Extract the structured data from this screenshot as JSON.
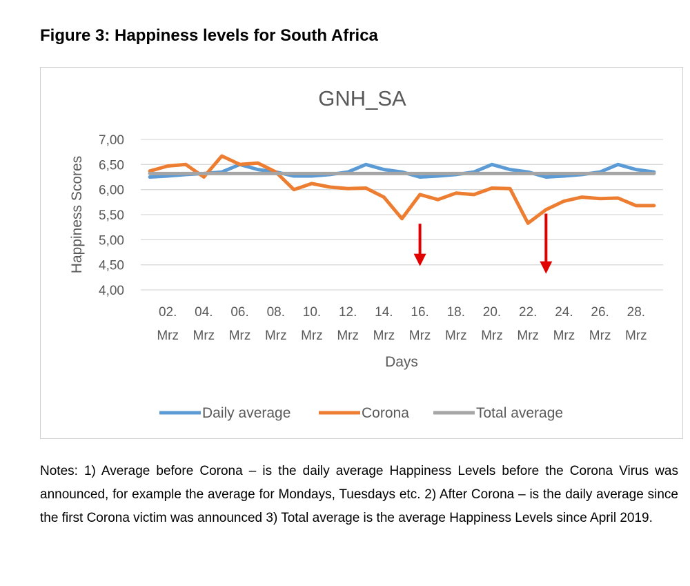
{
  "figure_title": "Figure 3: Happiness levels for South Africa",
  "notes": "Notes: 1) Average before Corona – is the daily average Happiness Levels before the Corona Virus was announced, for example the average for Mondays, Tuesdays etc. 2) After Corona – is the daily average since the first Corona victim was announced 3) Total average is the average Happiness Levels since April 2019.",
  "chart_data": {
    "type": "line",
    "title": "GNH_SA",
    "xlabel": "Days",
    "ylabel": "Happiness Scores",
    "ylim": [
      4.0,
      7.0
    ],
    "ytick_step": 0.5,
    "ytick_labels": [
      "4,00",
      "4,50",
      "5,00",
      "5,50",
      "6,00",
      "6,50",
      "7,00"
    ],
    "x": [
      "01. Mrz",
      "02. Mrz",
      "03. Mrz",
      "04. Mrz",
      "05. Mrz",
      "06. Mrz",
      "07. Mrz",
      "08. Mrz",
      "09. Mrz",
      "10. Mrz",
      "11. Mrz",
      "12. Mrz",
      "13. Mrz",
      "14. Mrz",
      "15. Mrz",
      "16. Mrz",
      "17. Mrz",
      "18. Mrz",
      "19. Mrz",
      "20. Mrz",
      "21. Mrz",
      "22. Mrz",
      "23. Mrz",
      "24. Mrz",
      "25. Mrz",
      "26. Mrz",
      "27. Mrz",
      "28. Mrz",
      "29. Mrz"
    ],
    "xtick_labels": [
      {
        "day": "02.",
        "month": "Mrz"
      },
      {
        "day": "04.",
        "month": "Mrz"
      },
      {
        "day": "06.",
        "month": "Mrz"
      },
      {
        "day": "08.",
        "month": "Mrz"
      },
      {
        "day": "10.",
        "month": "Mrz"
      },
      {
        "day": "12.",
        "month": "Mrz"
      },
      {
        "day": "14.",
        "month": "Mrz"
      },
      {
        "day": "16.",
        "month": "Mrz"
      },
      {
        "day": "18.",
        "month": "Mrz"
      },
      {
        "day": "20.",
        "month": "Mrz"
      },
      {
        "day": "22.",
        "month": "Mrz"
      },
      {
        "day": "24.",
        "month": "Mrz"
      },
      {
        "day": "26.",
        "month": "Mrz"
      },
      {
        "day": "28.",
        "month": "Mrz"
      }
    ],
    "series": [
      {
        "name": "Daily average",
        "color": "#5B9BD5",
        "values": [
          6.25,
          6.27,
          6.3,
          6.32,
          6.35,
          6.5,
          6.4,
          6.35,
          6.27,
          6.27,
          6.3,
          6.35,
          6.5,
          6.4,
          6.35,
          6.25,
          6.27,
          6.3,
          6.35,
          6.5,
          6.4,
          6.35,
          6.25,
          6.27,
          6.3,
          6.35,
          6.5,
          6.4,
          6.35
        ]
      },
      {
        "name": "Corona",
        "color": "#ED7D31",
        "values": [
          6.37,
          6.47,
          6.5,
          6.25,
          6.67,
          6.5,
          6.53,
          6.35,
          6.0,
          6.12,
          6.05,
          6.02,
          6.03,
          5.85,
          5.42,
          5.9,
          5.8,
          5.93,
          5.9,
          6.03,
          6.02,
          5.33,
          5.6,
          5.77,
          5.85,
          5.82,
          5.83,
          5.68,
          5.68
        ]
      },
      {
        "name": "Total average",
        "color": "#A5A5A5",
        "values": [
          6.32,
          6.32,
          6.32,
          6.32,
          6.32,
          6.32,
          6.32,
          6.32,
          6.32,
          6.32,
          6.32,
          6.32,
          6.32,
          6.32,
          6.32,
          6.32,
          6.32,
          6.32,
          6.32,
          6.32,
          6.32,
          6.32,
          6.32,
          6.32,
          6.32,
          6.32,
          6.32,
          6.32,
          6.32
        ]
      }
    ],
    "annotations": [
      {
        "type": "arrow",
        "color": "#E00000",
        "x": "16. Mrz",
        "y_from": 5.32,
        "y_to": 4.5
      },
      {
        "type": "arrow",
        "color": "#E00000",
        "x": "23. Mrz",
        "y_from": 5.52,
        "y_to": 4.35
      }
    ],
    "legend_position": "bottom",
    "grid": true
  }
}
